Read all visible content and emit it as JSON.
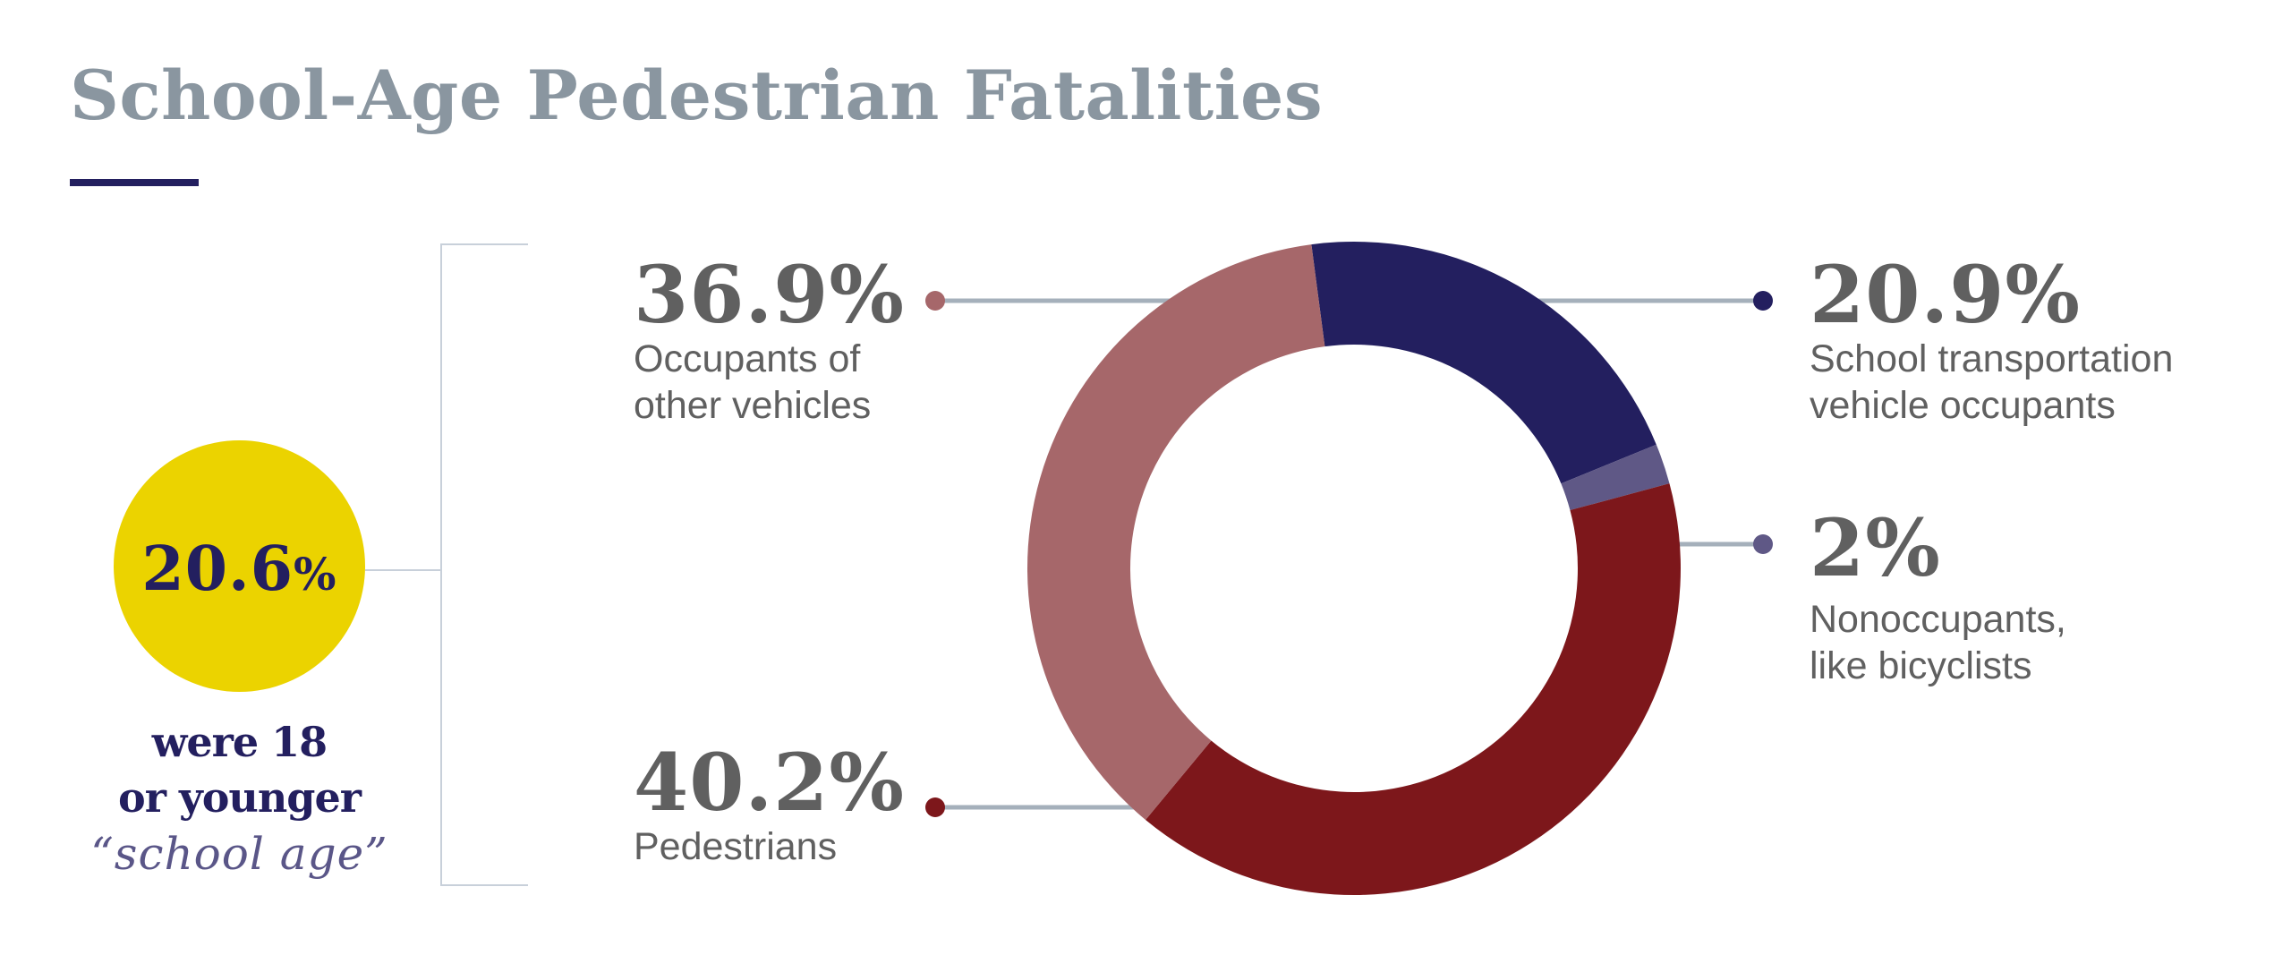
{
  "header": {
    "title": "School-Age Pedestrian Fatalities"
  },
  "summary": {
    "value": "20.6",
    "unit": "%",
    "caption_line1": "were 18",
    "caption_line2": "or younger",
    "caption_quote": "“school age”",
    "circle_color": "#ebd300",
    "text_color": "#231f5f"
  },
  "callouts": [
    {
      "value": "36.9%",
      "label_line1": "Occupants of",
      "label_line2": "other vehicles",
      "color": "#a6676a"
    },
    {
      "value": "40.2%",
      "label_line1": "Pedestrians",
      "label_line2": "",
      "color": "#7d171b"
    },
    {
      "value": "20.9%",
      "label_line1": "School transportation",
      "label_line2": "vehicle occupants",
      "color": "#231f5f"
    },
    {
      "value": "2%",
      "label_line1": "Nonoccupants,",
      "label_line2": "like bicyclists",
      "color": "#5f5886"
    }
  ],
  "chart_data": {
    "type": "pie",
    "variant": "donut",
    "title": "School-Age Pedestrian Fatalities",
    "categories": [
      "School transportation vehicle occupants",
      "Nonoccupants, like bicyclists",
      "Pedestrians",
      "Occupants of other vehicles"
    ],
    "values": [
      20.9,
      2.0,
      40.2,
      36.9
    ],
    "unit": "%",
    "colors": [
      "#231f5f",
      "#5f5886",
      "#7d171b",
      "#a6676a"
    ],
    "start_angle_deg": -7.5,
    "direction": "clockwise",
    "annotation": "20.6% were 18 or younger “school age”",
    "legend": "callout labels with leader lines"
  }
}
